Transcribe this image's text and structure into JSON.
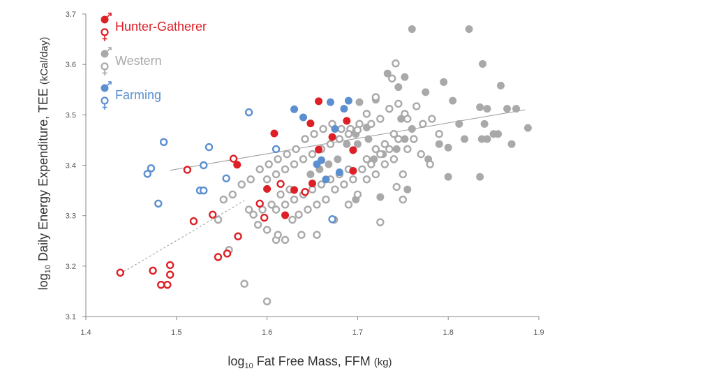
{
  "chart_data": {
    "type": "scatter",
    "xlabel": {
      "prefix": "log",
      "sub": "10",
      "main": " Fat Free Mass, FFM ",
      "unit": "(kg)"
    },
    "ylabel": {
      "prefix": "log",
      "sub": "10",
      "main": " Daily Energy Expenditure, TEE ",
      "unit": "(kCal/day)"
    },
    "xlim": [
      1.4,
      1.9
    ],
    "ylim": [
      3.1,
      3.7
    ],
    "x_ticks": [
      "1.4",
      "1.5",
      "1.6",
      "1.7",
      "1.8",
      "1.9"
    ],
    "y_ticks": [
      "3.1",
      "3.2",
      "3.3",
      "3.4",
      "3.5",
      "3.6",
      "3.7"
    ],
    "grid": false,
    "legend_position": "top-left",
    "colors": {
      "hunter_gatherer": "#dd1f26",
      "western": "#a9a9a9",
      "farming": "#5b8fcf",
      "trend_line": "#9a9a9a"
    },
    "legend": [
      {
        "label": "Hunter-Gatherer",
        "color": "#dd1f26"
      },
      {
        "label": "Western",
        "color": "#a9a9a9"
      },
      {
        "label": "Farming",
        "color": "#5b8fcf"
      }
    ],
    "series": [
      {
        "group": "Hunter-Gatherer",
        "sex": "male",
        "color": "#dd1f26",
        "filled": true,
        "points": [
          [
            1.567,
            3.401
          ],
          [
            1.608,
            3.463
          ],
          [
            1.657,
            3.527
          ],
          [
            1.648,
            3.483
          ],
          [
            1.688,
            3.488
          ],
          [
            1.672,
            3.456
          ],
          [
            1.657,
            3.431
          ],
          [
            1.695,
            3.43
          ],
          [
            1.695,
            3.389
          ],
          [
            1.6,
            3.353
          ],
          [
            1.63,
            3.351
          ],
          [
            1.65,
            3.364
          ],
          [
            1.62,
            3.301
          ]
        ]
      },
      {
        "group": "Hunter-Gatherer",
        "sex": "female",
        "color": "#dd1f26",
        "filled": false,
        "points": [
          [
            1.438,
            3.187
          ],
          [
            1.474,
            3.191
          ],
          [
            1.483,
            3.163
          ],
          [
            1.49,
            3.163
          ],
          [
            1.493,
            3.183
          ],
          [
            1.493,
            3.202
          ],
          [
            1.512,
            3.391
          ],
          [
            1.519,
            3.289
          ],
          [
            1.54,
            3.302
          ],
          [
            1.546,
            3.218
          ],
          [
            1.556,
            3.225
          ],
          [
            1.563,
            3.413
          ],
          [
            1.568,
            3.259
          ],
          [
            1.592,
            3.324
          ],
          [
            1.597,
            3.296
          ],
          [
            1.615,
            3.363
          ],
          [
            1.642,
            3.347
          ]
        ]
      },
      {
        "group": "Western",
        "sex": "male",
        "color": "#a9a9a9",
        "filled": true,
        "points": [
          [
            1.76,
            3.67
          ],
          [
            1.823,
            3.67
          ],
          [
            1.838,
            3.601
          ],
          [
            1.72,
            3.53
          ],
          [
            1.702,
            3.525
          ],
          [
            1.71,
            3.475
          ],
          [
            1.745,
            3.555
          ],
          [
            1.752,
            3.575
          ],
          [
            1.733,
            3.582
          ],
          [
            1.775,
            3.545
          ],
          [
            1.795,
            3.565
          ],
          [
            1.805,
            3.528
          ],
          [
            1.835,
            3.515
          ],
          [
            1.858,
            3.558
          ],
          [
            1.843,
            3.512
          ],
          [
            1.865,
            3.512
          ],
          [
            1.875,
            3.512
          ],
          [
            1.888,
            3.474
          ],
          [
            1.85,
            3.462
          ],
          [
            1.855,
            3.462
          ],
          [
            1.843,
            3.452
          ],
          [
            1.837,
            3.452
          ],
          [
            1.812,
            3.482
          ],
          [
            1.8,
            3.435
          ],
          [
            1.79,
            3.442
          ],
          [
            1.778,
            3.412
          ],
          [
            1.76,
            3.472
          ],
          [
            1.752,
            3.452
          ],
          [
            1.748,
            3.492
          ],
          [
            1.755,
            3.352
          ],
          [
            1.835,
            3.377
          ],
          [
            1.8,
            3.377
          ],
          [
            1.87,
            3.442
          ],
          [
            1.743,
            3.432
          ],
          [
            1.728,
            3.422
          ],
          [
            1.718,
            3.412
          ],
          [
            1.712,
            3.452
          ],
          [
            1.698,
            3.462
          ],
          [
            1.688,
            3.442
          ],
          [
            1.678,
            3.412
          ],
          [
            1.668,
            3.402
          ],
          [
            1.658,
            3.392
          ],
          [
            1.648,
            3.382
          ],
          [
            1.698,
            3.332
          ],
          [
            1.725,
            3.337
          ],
          [
            1.818,
            3.452
          ],
          [
            1.84,
            3.482
          ],
          [
            1.7,
            3.442
          ]
        ]
      },
      {
        "group": "Western",
        "sex": "female",
        "color": "#a9a9a9",
        "filled": false,
        "points": [
          [
            1.742,
            3.602
          ],
          [
            1.765,
            3.517
          ],
          [
            1.752,
            3.502
          ],
          [
            1.738,
            3.572
          ],
          [
            1.72,
            3.535
          ],
          [
            1.71,
            3.502
          ],
          [
            1.702,
            3.482
          ],
          [
            1.692,
            3.472
          ],
          [
            1.682,
            3.472
          ],
          [
            1.672,
            3.482
          ],
          [
            1.662,
            3.472
          ],
          [
            1.652,
            3.462
          ],
          [
            1.642,
            3.452
          ],
          [
            1.632,
            3.432
          ],
          [
            1.622,
            3.422
          ],
          [
            1.612,
            3.412
          ],
          [
            1.602,
            3.402
          ],
          [
            1.592,
            3.392
          ],
          [
            1.582,
            3.372
          ],
          [
            1.572,
            3.362
          ],
          [
            1.562,
            3.342
          ],
          [
            1.552,
            3.332
          ],
          [
            1.546,
            3.292
          ],
          [
            1.558,
            3.232
          ],
          [
            1.58,
            3.312
          ],
          [
            1.59,
            3.282
          ],
          [
            1.6,
            3.272
          ],
          [
            1.61,
            3.252
          ],
          [
            1.62,
            3.252
          ],
          [
            1.638,
            3.262
          ],
          [
            1.655,
            3.262
          ],
          [
            1.674,
            3.292
          ],
          [
            1.69,
            3.322
          ],
          [
            1.7,
            3.342
          ],
          [
            1.71,
            3.372
          ],
          [
            1.72,
            3.382
          ],
          [
            1.73,
            3.402
          ],
          [
            1.74,
            3.412
          ],
          [
            1.75,
            3.382
          ],
          [
            1.755,
            3.432
          ],
          [
            1.762,
            3.452
          ],
          [
            1.772,
            3.482
          ],
          [
            1.782,
            3.492
          ],
          [
            1.79,
            3.462
          ],
          [
            1.78,
            3.402
          ],
          [
            1.77,
            3.422
          ],
          [
            1.725,
            3.287
          ],
          [
            1.743,
            3.357
          ],
          [
            1.75,
            3.332
          ],
          [
            1.575,
            3.165
          ],
          [
            1.6,
            3.13
          ],
          [
            1.612,
            3.262
          ],
          [
            1.628,
            3.292
          ],
          [
            1.635,
            3.302
          ],
          [
            1.645,
            3.312
          ],
          [
            1.655,
            3.322
          ],
          [
            1.665,
            3.332
          ],
          [
            1.675,
            3.352
          ],
          [
            1.685,
            3.362
          ],
          [
            1.695,
            3.372
          ],
          [
            1.705,
            3.392
          ],
          [
            1.715,
            3.402
          ],
          [
            1.725,
            3.422
          ],
          [
            1.735,
            3.432
          ],
          [
            1.745,
            3.452
          ],
          [
            1.615,
            3.342
          ],
          [
            1.625,
            3.352
          ],
          [
            1.605,
            3.322
          ],
          [
            1.595,
            3.312
          ],
          [
            1.585,
            3.302
          ],
          [
            1.6,
            3.372
          ],
          [
            1.61,
            3.382
          ],
          [
            1.62,
            3.392
          ],
          [
            1.63,
            3.402
          ],
          [
            1.64,
            3.412
          ],
          [
            1.65,
            3.422
          ],
          [
            1.66,
            3.432
          ],
          [
            1.67,
            3.442
          ],
          [
            1.68,
            3.452
          ],
          [
            1.69,
            3.462
          ],
          [
            1.7,
            3.47
          ],
          [
            1.715,
            3.482
          ],
          [
            1.725,
            3.492
          ],
          [
            1.735,
            3.512
          ],
          [
            1.745,
            3.522
          ],
          [
            1.755,
            3.492
          ],
          [
            1.69,
            3.392
          ],
          [
            1.68,
            3.382
          ],
          [
            1.67,
            3.372
          ],
          [
            1.66,
            3.362
          ],
          [
            1.65,
            3.352
          ],
          [
            1.64,
            3.342
          ],
          [
            1.63,
            3.332
          ],
          [
            1.62,
            3.322
          ],
          [
            1.61,
            3.312
          ],
          [
            1.71,
            3.412
          ],
          [
            1.72,
            3.432
          ],
          [
            1.73,
            3.442
          ],
          [
            1.74,
            3.462
          ]
        ]
      },
      {
        "group": "Farming",
        "sex": "male",
        "color": "#5b8fcf",
        "filled": true,
        "points": [
          [
            1.63,
            3.511
          ],
          [
            1.64,
            3.495
          ],
          [
            1.67,
            3.525
          ],
          [
            1.685,
            3.512
          ],
          [
            1.69,
            3.528
          ],
          [
            1.675,
            3.472
          ],
          [
            1.66,
            3.41
          ],
          [
            1.655,
            3.402
          ],
          [
            1.68,
            3.386
          ],
          [
            1.665,
            3.372
          ]
        ]
      },
      {
        "group": "Farming",
        "sex": "female",
        "color": "#5b8fcf",
        "filled": false,
        "points": [
          [
            1.468,
            3.383
          ],
          [
            1.472,
            3.394
          ],
          [
            1.48,
            3.324
          ],
          [
            1.486,
            3.446
          ],
          [
            1.526,
            3.35
          ],
          [
            1.53,
            3.35
          ],
          [
            1.53,
            3.4
          ],
          [
            1.536,
            3.436
          ],
          [
            1.555,
            3.374
          ],
          [
            1.58,
            3.505
          ],
          [
            1.61,
            3.432
          ],
          [
            1.672,
            3.293
          ]
        ]
      }
    ],
    "trend_lines": [
      {
        "style": "solid",
        "from": [
          1.493,
          3.39
        ],
        "to": [
          1.885,
          3.51
        ]
      },
      {
        "style": "dashed",
        "from": [
          1.438,
          3.185
        ],
        "to": [
          1.575,
          3.33
        ]
      }
    ]
  }
}
